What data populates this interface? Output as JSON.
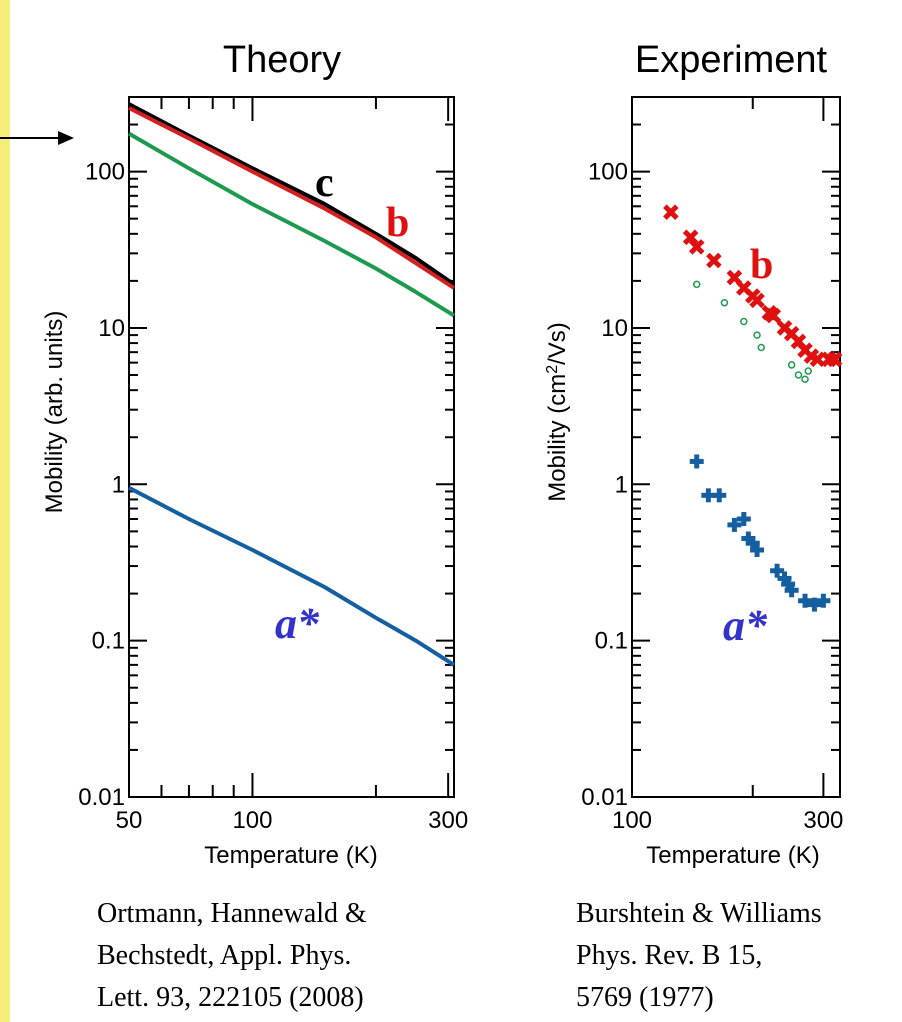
{
  "citations": {
    "left": "Ortmann, Hannewald &\nBechstedt, Appl. Phys.\nLett. 93, 222105 (2008)",
    "right": "Burshtein & Williams\nPhys. Rev. B 15,\n5769 (1977)"
  },
  "colors": {
    "c": "#000000",
    "b": "#d42020",
    "green": "#1e9a4e",
    "a_star": "#145fa0",
    "a_star_label": "#3333cc",
    "b_label": "#e01010",
    "background": "#f6ee7c"
  },
  "chart_data": [
    {
      "type": "line",
      "title": "Theory",
      "xlabel": "Temperature (K)",
      "ylabel": "Mobility (arb. units)",
      "xscale": "log",
      "yscale": "log",
      "xlim": [
        50,
        310
      ],
      "ylim": [
        0.01,
        300
      ],
      "x_ticks": [
        "50",
        "100",
        "300"
      ],
      "y_ticks": [
        "0.01",
        "0.1",
        "1",
        "10",
        "100"
      ],
      "series": [
        {
          "name": "c",
          "color": "#000000",
          "x": [
            50,
            70,
            100,
            150,
            200,
            250,
            310
          ],
          "y": [
            270,
            170,
            105,
            62,
            40,
            28,
            19
          ]
        },
        {
          "name": "b",
          "color": "#d42020",
          "x": [
            50,
            70,
            100,
            150,
            200,
            250,
            310
          ],
          "y": [
            255,
            163,
            100,
            58,
            38,
            26,
            18
          ]
        },
        {
          "name": "",
          "color": "#1e9a4e",
          "x": [
            50,
            70,
            100,
            150,
            200,
            250,
            310
          ],
          "y": [
            175,
            105,
            62,
            36,
            24,
            17,
            12
          ]
        },
        {
          "name": "a*",
          "color": "#145fa0",
          "x": [
            50,
            70,
            100,
            150,
            200,
            250,
            310
          ],
          "y": [
            0.95,
            0.6,
            0.38,
            0.22,
            0.14,
            0.1,
            0.07
          ]
        }
      ],
      "labels": [
        {
          "text": "c",
          "series": "c"
        },
        {
          "text": "b",
          "series": "b"
        },
        {
          "text": "a*",
          "series": "a*"
        }
      ]
    },
    {
      "type": "scatter",
      "title": "Experiment",
      "xlabel": "Temperature (K)",
      "ylabel_parts": [
        "Mobility (cm",
        "2",
        "/Vs)"
      ],
      "xscale": "log",
      "yscale": "log",
      "xlim": [
        100,
        330
      ],
      "ylim": [
        0.01,
        300
      ],
      "x_ticks": [
        "100",
        "300"
      ],
      "y_ticks": [
        "0.01",
        "0.1",
        "1",
        "10",
        "100"
      ],
      "series": [
        {
          "name": "b",
          "marker": "x",
          "color": "#e01010",
          "x": [
            125,
            140,
            145,
            160,
            180,
            190,
            200,
            205,
            220,
            225,
            240,
            250,
            260,
            270,
            280,
            290,
            310,
            320
          ],
          "y": [
            55,
            38,
            33,
            27,
            21,
            18,
            16,
            15,
            12.5,
            12,
            10,
            9.2,
            8.2,
            7.2,
            6.6,
            6.3,
            6.3,
            6.3
          ]
        },
        {
          "name": "",
          "marker": "circle",
          "color": "#1e9a4e",
          "x": [
            145,
            170,
            190,
            205,
            210,
            250,
            260,
            270,
            275
          ],
          "y": [
            19,
            14.5,
            11,
            9,
            7.5,
            5.8,
            5,
            4.7,
            5.3
          ]
        },
        {
          "name": "a*",
          "marker": "plus",
          "color": "#145fa0",
          "x": [
            145,
            155,
            165,
            180,
            190,
            195,
            200,
            205,
            230,
            240,
            245,
            250,
            270,
            285,
            300
          ],
          "y": [
            1.4,
            0.85,
            0.85,
            0.55,
            0.6,
            0.45,
            0.42,
            0.38,
            0.28,
            0.25,
            0.23,
            0.21,
            0.18,
            0.17,
            0.18
          ]
        }
      ],
      "labels": [
        {
          "text": "b",
          "series": "b"
        },
        {
          "text": "a*",
          "series": "a*"
        }
      ]
    }
  ]
}
